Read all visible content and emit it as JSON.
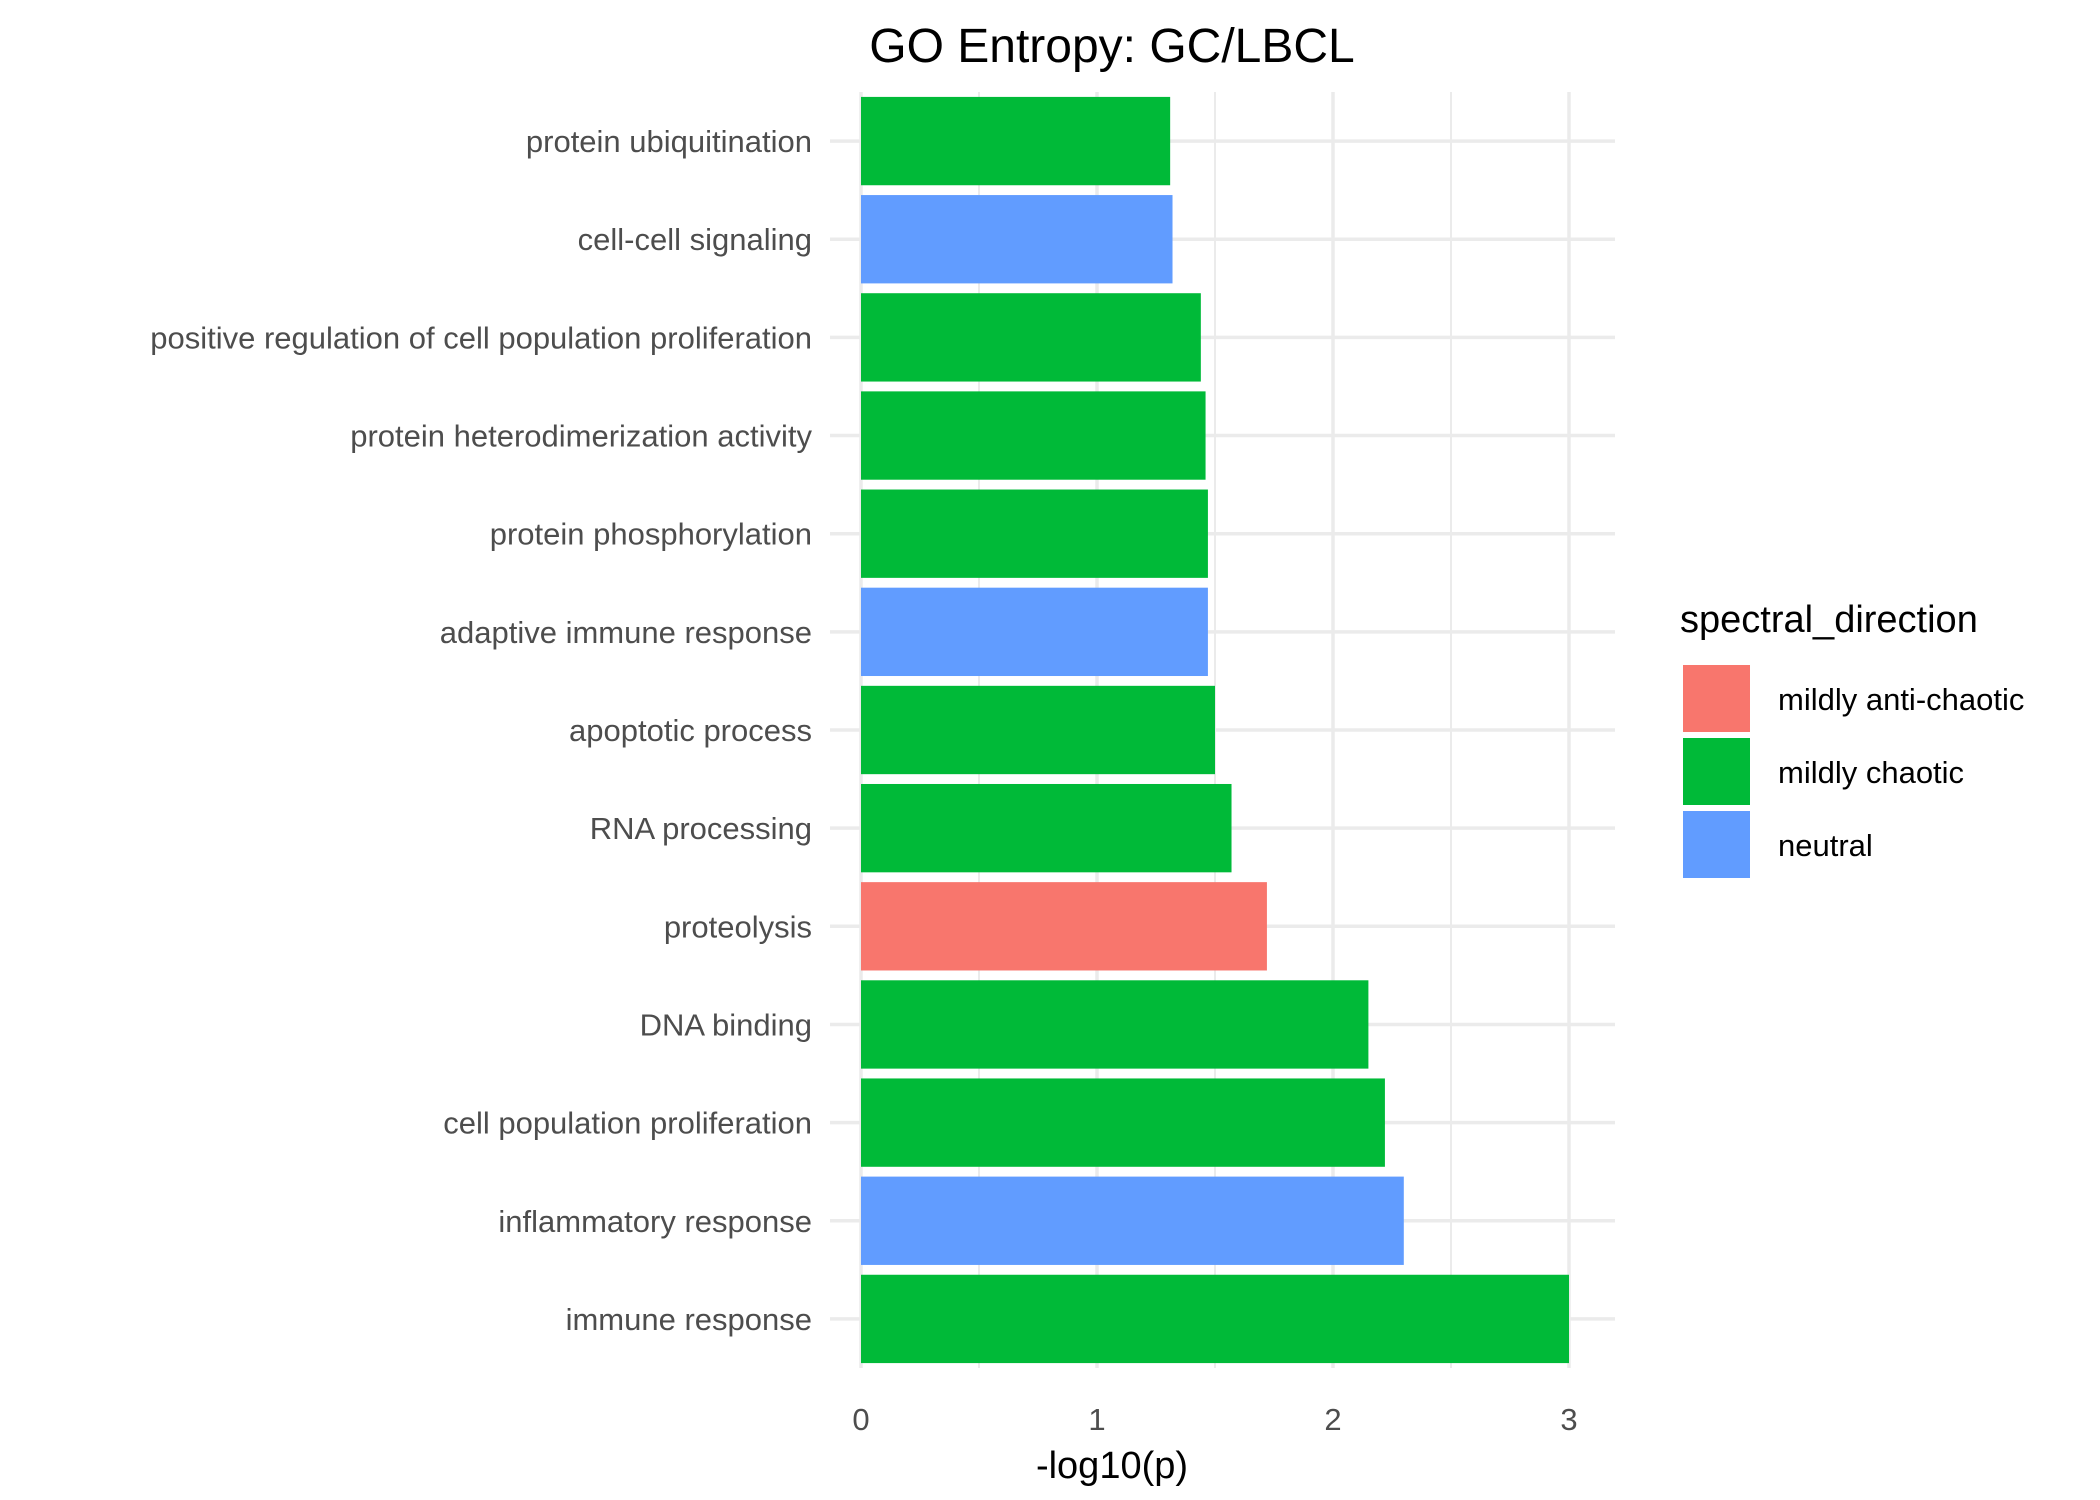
{
  "chart_data": {
    "type": "bar",
    "orientation": "horizontal",
    "title": "GO Entropy: GC/LBCL",
    "xlabel": "-log10(p)",
    "ylabel": "",
    "xlim": [
      0,
      3.15
    ],
    "xticks": [
      0,
      1,
      2,
      3
    ],
    "grid": true,
    "categories": [
      "immune response",
      "inflammatory response",
      "cell population proliferation",
      "DNA binding",
      "proteolysis",
      "RNA processing",
      "apoptotic process",
      "adaptive immune response",
      "protein phosphorylation",
      "protein heterodimerization activity",
      "positive regulation of cell population proliferation",
      "cell-cell signaling",
      "protein ubiquitination"
    ],
    "values": [
      3.0,
      2.3,
      2.22,
      2.15,
      1.72,
      1.57,
      1.5,
      1.47,
      1.47,
      1.46,
      1.44,
      1.32,
      1.31
    ],
    "groups": [
      "mildly chaotic",
      "neutral",
      "mildly chaotic",
      "mildly chaotic",
      "mildly anti-chaotic",
      "mildly chaotic",
      "mildly chaotic",
      "neutral",
      "mildly chaotic",
      "mildly chaotic",
      "mildly chaotic",
      "neutral",
      "mildly chaotic"
    ],
    "legend": {
      "title": "spectral_direction",
      "position": "right",
      "entries": [
        {
          "label": "mildly anti-chaotic",
          "color": "#F8766D"
        },
        {
          "label": "mildly chaotic",
          "color": "#00BA38"
        },
        {
          "label": "neutral",
          "color": "#619CFF"
        }
      ]
    }
  }
}
